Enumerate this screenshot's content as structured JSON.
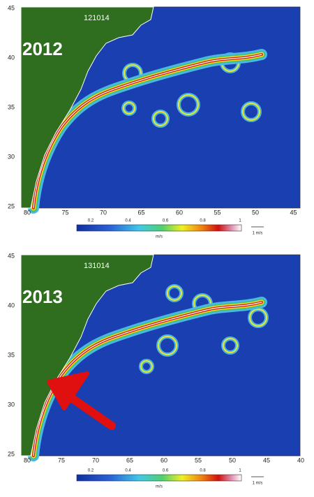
{
  "panels": [
    {
      "date_label": "121014",
      "year": "2012",
      "lat_ticks": [
        45,
        40,
        35,
        30,
        25
      ],
      "lon_ticks": [
        80,
        75,
        70,
        65,
        60,
        55,
        50,
        45
      ],
      "colorbar": {
        "ticks": [
          0.2,
          0.4,
          0.6,
          0.8,
          1
        ],
        "unit": "m/s"
      },
      "scale_label": "1 m/s"
    },
    {
      "date_label": "131014",
      "year": "2013",
      "lat_ticks": [
        45,
        40,
        35,
        30,
        25
      ],
      "lon_ticks": [
        80,
        75,
        70,
        65,
        60,
        55,
        50,
        45,
        40
      ],
      "colorbar": {
        "ticks": [
          0.2,
          0.4,
          0.6,
          0.8,
          1
        ],
        "unit": "m/s"
      },
      "scale_label": "1 m/s"
    }
  ]
}
